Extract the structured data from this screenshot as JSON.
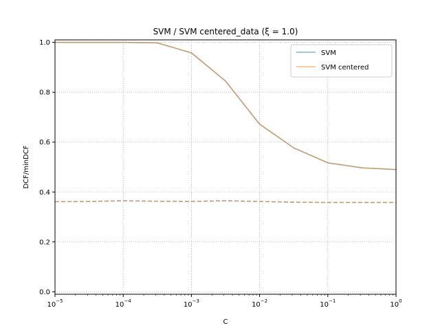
{
  "chart_data": {
    "type": "line",
    "title": "SVM / SVM centered_data (ξ = 1.0)",
    "xlabel": "C",
    "ylabel": "DCF/minDCF",
    "xscale": "log",
    "xlim": [
      1e-05,
      1
    ],
    "ylim": [
      -0.01,
      1.01
    ],
    "x_ticks": [
      1e-05,
      0.0001,
      0.001,
      0.01,
      0.1,
      1
    ],
    "x_tick_labels": [
      {
        "base": "10",
        "exp": "−5"
      },
      {
        "base": "10",
        "exp": "−4"
      },
      {
        "base": "10",
        "exp": "−3"
      },
      {
        "base": "10",
        "exp": "−2"
      },
      {
        "base": "10",
        "exp": "−1"
      },
      {
        "base": "10",
        "exp": "0"
      }
    ],
    "y_ticks": [
      0.0,
      0.2,
      0.4,
      0.6,
      0.8,
      1.0
    ],
    "y_tick_labels": [
      "0.0",
      "0.2",
      "0.4",
      "0.6",
      "0.8",
      "1.0"
    ],
    "grid": true,
    "legend_position": "top-right",
    "x": [
      1e-05,
      3.16e-05,
      0.0001,
      0.000316,
      0.001,
      0.00316,
      0.01,
      0.0316,
      0.1,
      0.316,
      1
    ],
    "series": [
      {
        "name": "SVM",
        "color": "#1f77b4",
        "style": "solid",
        "values": [
          1.0,
          1.0,
          1.0,
          0.998,
          0.958,
          0.845,
          0.672,
          0.577,
          0.517,
          0.497,
          0.49
        ]
      },
      {
        "name": "SVM",
        "color": "#1f77b4",
        "style": "dashed",
        "values": [
          0.361,
          0.362,
          0.365,
          0.363,
          0.362,
          0.365,
          0.362,
          0.359,
          0.358,
          0.358,
          0.358
        ]
      },
      {
        "name": "SVM centered",
        "color": "#ff7f0e",
        "style": "solid",
        "values": [
          1.0,
          1.0,
          1.0,
          0.998,
          0.958,
          0.845,
          0.672,
          0.577,
          0.517,
          0.497,
          0.49
        ]
      },
      {
        "name": "SVM centered",
        "color": "#ff7f0e",
        "style": "dashed",
        "values": [
          0.361,
          0.362,
          0.365,
          0.363,
          0.362,
          0.365,
          0.362,
          0.359,
          0.358,
          0.358,
          0.358
        ]
      }
    ],
    "legend": [
      {
        "label": "SVM",
        "color": "#1f77b4"
      },
      {
        "label": "SVM centered",
        "color": "#ff7f0e"
      }
    ]
  }
}
